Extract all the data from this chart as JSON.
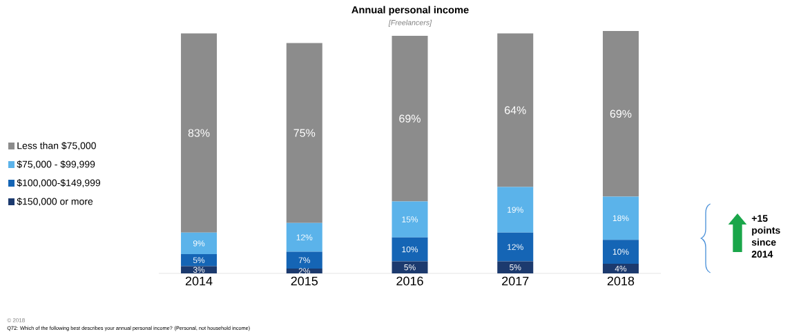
{
  "chart_data": {
    "type": "bar",
    "title": "Annual personal income",
    "subtitle": "[Freelancers]",
    "categories": [
      "2014",
      "2015",
      "2016",
      "2017",
      "2018"
    ],
    "stacked": true,
    "legend": "left",
    "series": [
      {
        "name": "$150,000 or more",
        "color": "#1c3a6e",
        "values": [
          3,
          2,
          5,
          5,
          4
        ],
        "value_labels": [
          "3%",
          "2%",
          "5%",
          "5%",
          "4%"
        ]
      },
      {
        "name": "$100,000-$149,999",
        "color": "#1565b5",
        "values": [
          5,
          7,
          10,
          12,
          10
        ],
        "value_labels": [
          "5%",
          "7%",
          "10%",
          "12%",
          "10%"
        ]
      },
      {
        "name": "$75,000 - $99,999",
        "color": "#5bb3ea",
        "values": [
          9,
          12,
          15,
          19,
          18
        ],
        "value_labels": [
          "9%",
          "12%",
          "15%",
          "19%",
          "18%"
        ]
      },
      {
        "name": "Less than $75,000",
        "color": "#8c8c8c",
        "values": [
          83,
          75,
          69,
          64,
          69
        ],
        "value_labels": [
          "83%",
          "75%",
          "69%",
          "64%",
          "69%"
        ]
      }
    ],
    "annotations": [
      "+15 points since 2014",
      "© 2018",
      "Q72: Which of the following best describes your annual personal income? (Personal, not household income)"
    ]
  }
}
